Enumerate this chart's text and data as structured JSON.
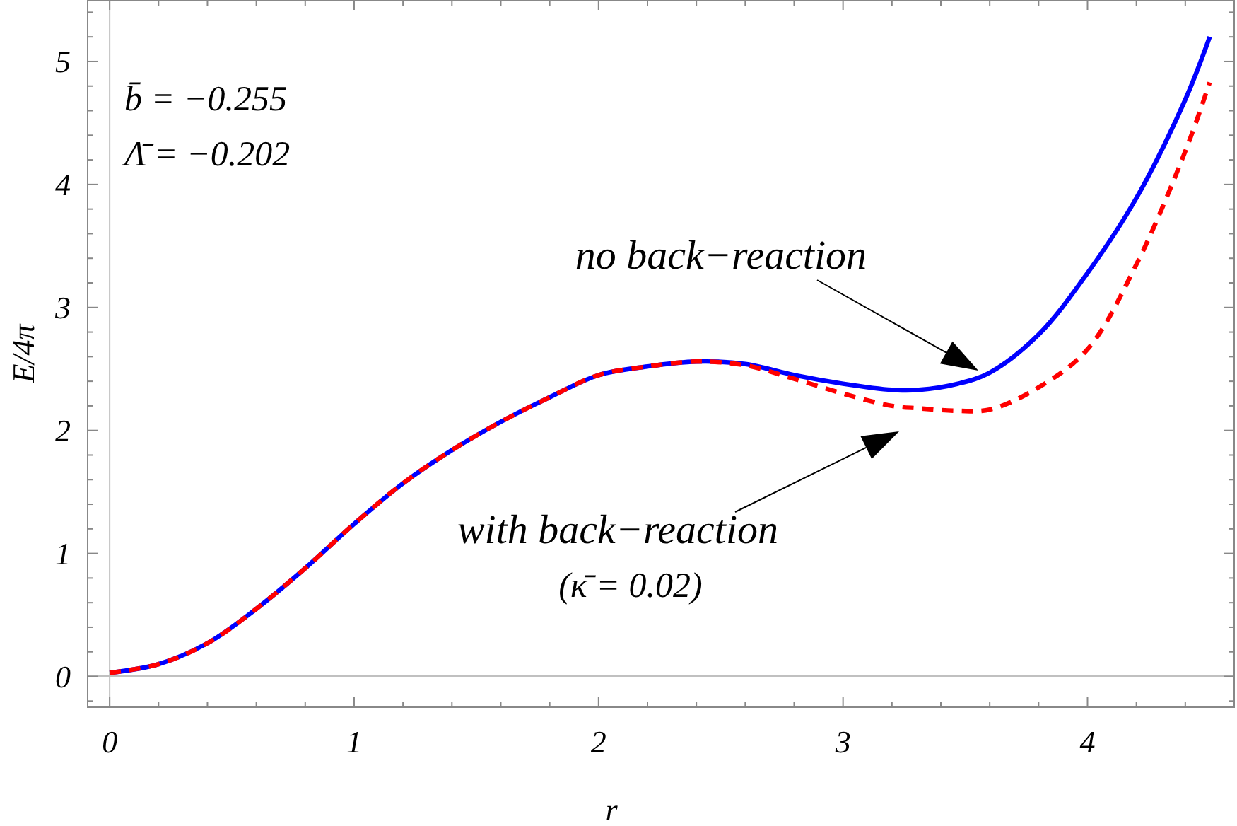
{
  "chart_data": {
    "type": "line",
    "xlabel": "r",
    "ylabel": "E/4π",
    "x": [
      0,
      0.2,
      0.4,
      0.6,
      0.8,
      1,
      1.2,
      1.4,
      1.6,
      1.8,
      2,
      2.2,
      2.4,
      2.6,
      2.8,
      3,
      3.2,
      3.31,
      3.47,
      3.6,
      3.8,
      4,
      4.2,
      4.4,
      4.5
    ],
    "series": [
      {
        "color": "#0000ff",
        "line_style": "solid",
        "values": [
          0.03,
          0.1,
          0.27,
          0.55,
          0.88,
          1.24,
          1.57,
          1.84,
          2.07,
          2.27,
          2.45,
          2.52,
          2.56,
          2.54,
          2.45,
          2.38,
          2.33,
          2.33,
          2.38,
          2.47,
          2.78,
          3.28,
          3.89,
          4.69,
          5.2
        ]
      },
      {
        "color": "#ff0000",
        "line_style": "dashed",
        "values": [
          0.03,
          0.1,
          0.27,
          0.55,
          0.88,
          1.24,
          1.57,
          1.84,
          2.07,
          2.27,
          2.45,
          2.52,
          2.56,
          2.53,
          2.42,
          2.3,
          2.2,
          2.18,
          2.16,
          2.17,
          2.35,
          2.66,
          3.35,
          4.27,
          4.83
        ]
      }
    ],
    "xlim": [
      -0.09,
      4.6
    ],
    "ylim": [
      -0.25,
      5.5
    ],
    "xticks": [
      0,
      {
        "value": 0.2,
        "label": null
      },
      {
        "value": 0.4,
        "label": null
      },
      {
        "value": 0.6,
        "label": null
      },
      {
        "value": 0.8,
        "label": null
      },
      1,
      {
        "value": 1.2,
        "label": null
      },
      {
        "value": 1.4,
        "label": null
      },
      {
        "value": 1.6,
        "label": null
      },
      {
        "value": 1.8,
        "label": null
      },
      2,
      {
        "value": 2.2,
        "label": null
      },
      {
        "value": 2.4,
        "label": null
      },
      {
        "value": 2.6,
        "label": null
      },
      {
        "value": 2.8,
        "label": null
      },
      3,
      {
        "value": 3.2,
        "label": null
      },
      {
        "value": 3.4,
        "label": null
      },
      {
        "value": 3.6,
        "label": null
      },
      {
        "value": 3.8,
        "label": null
      },
      4,
      {
        "value": 4.2,
        "label": null
      },
      {
        "value": 4.4,
        "label": null
      }
    ],
    "yticks": [
      {
        "value": -0.2,
        "label": null
      },
      0,
      {
        "value": 0.2,
        "label": null
      },
      {
        "value": 0.4,
        "label": null
      },
      {
        "value": 0.6,
        "label": null
      },
      {
        "value": 0.8,
        "label": null
      },
      1,
      {
        "value": 1.2,
        "label": null
      },
      {
        "value": 1.4,
        "label": null
      },
      {
        "value": 1.6,
        "label": null
      },
      {
        "value": 1.8,
        "label": null
      },
      2,
      {
        "value": 2.2,
        "label": null
      },
      {
        "value": 2.4,
        "label": null
      },
      {
        "value": 2.6,
        "label": null
      },
      {
        "value": 2.8,
        "label": null
      },
      3,
      {
        "value": 3.2,
        "label": null
      },
      {
        "value": 3.4,
        "label": null
      },
      {
        "value": 3.6,
        "label": null
      },
      {
        "value": 3.8,
        "label": null
      },
      4,
      {
        "value": 4.2,
        "label": null
      },
      {
        "value": 4.4,
        "label": null
      },
      {
        "value": 4.6,
        "label": null
      },
      {
        "value": 4.8,
        "label": null
      },
      5,
      {
        "value": 5.2,
        "label": null
      },
      {
        "value": 5.4,
        "label": null
      }
    ],
    "annotations": [
      "b̄ = −0.255",
      "Λ̄ = −0.202",
      "no back−reaction",
      "with back−reaction",
      "(κ̄ = 0.02)"
    ]
  }
}
